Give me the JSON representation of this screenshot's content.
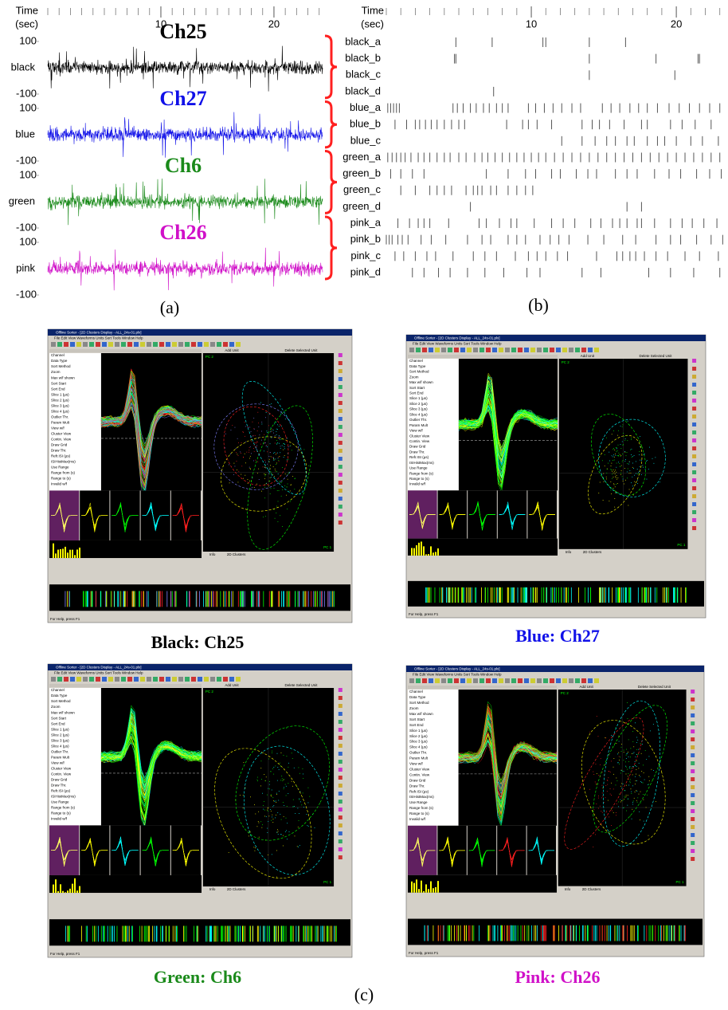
{
  "panel_a": {
    "label": "(a)",
    "time_label": [
      "Time",
      "(sec)"
    ],
    "xlim": [
      0,
      24.3
    ],
    "xticks": [
      10,
      20
    ],
    "minor_xticks": [
      0,
      1,
      2,
      3,
      4,
      5,
      6,
      7,
      8,
      9,
      11,
      12,
      13,
      14,
      15,
      16,
      17,
      18,
      19,
      21,
      22,
      23,
      24
    ],
    "ylim": [
      -100,
      100
    ],
    "yticks": [
      100,
      -100
    ],
    "channels": [
      {
        "title": "Ch25",
        "name": "black",
        "color": "#000000"
      },
      {
        "title": "Ch27",
        "name": "blue",
        "color": "#1010e8"
      },
      {
        "title": "Ch6",
        "name": "green",
        "color": "#1a8a1a"
      },
      {
        "title": "Ch26",
        "name": "pink",
        "color": "#d010c8"
      }
    ]
  },
  "panel_b": {
    "label": "(b)",
    "time_label": [
      "Time",
      "(sec)"
    ],
    "xlim": [
      0,
      23.4
    ],
    "xticks": [
      10,
      20
    ],
    "minor_xticks": [
      0,
      1,
      2,
      3,
      4,
      5,
      6,
      7,
      8,
      9,
      11,
      12,
      13,
      14,
      15,
      16,
      17,
      18,
      19,
      21,
      22,
      23
    ],
    "brace_color": "#ff2020",
    "groups": [
      {
        "units": [
          {
            "name": "black_a",
            "spikes": [
              4.8,
              7.3,
              10.8,
              11.0,
              14.0,
              16.5
            ]
          },
          {
            "name": "black_b",
            "spikes": [
              4.7,
              4.8,
              14.0,
              18.6,
              21.5,
              21.6
            ]
          },
          {
            "name": "black_c",
            "spikes": [
              14.0,
              19.9
            ]
          },
          {
            "name": "black_d",
            "spikes": [
              7.4
            ]
          }
        ]
      },
      {
        "units": [
          {
            "name": "blue_a",
            "spikes": [
              0.1,
              0.3,
              0.5,
              0.7,
              0.9,
              4.6,
              4.9,
              5.3,
              5.8,
              6.2,
              6.7,
              7.1,
              7.6,
              8.0,
              8.4,
              9.8,
              10.3,
              10.9,
              11.5,
              12.1,
              12.8,
              13.4,
              14.9,
              15.5,
              16.1,
              16.8,
              17.4,
              18.0,
              18.7,
              19.5,
              20.2,
              20.9,
              21.6,
              22.3,
              23.0
            ]
          },
          {
            "name": "blue_b",
            "spikes": [
              0.6,
              1.4,
              2.0,
              2.3,
              2.7,
              3.1,
              3.5,
              4.0,
              4.5,
              5.0,
              5.4,
              8.3,
              9.4,
              9.8,
              10.4,
              11.4,
              13.5,
              14.2,
              14.7,
              15.4,
              16.4,
              17.6,
              18.0,
              19.6,
              20.4,
              21.3,
              22.4
            ]
          },
          {
            "name": "blue_c",
            "spikes": [
              12.1,
              13.5,
              14.4,
              15.2,
              15.8,
              16.6,
              17.1,
              18.0,
              18.7,
              19.2,
              20.0,
              21.0,
              21.8,
              22.9
            ]
          }
        ]
      },
      {
        "units": [
          {
            "name": "green_a",
            "spikes": [
              0.1,
              0.4,
              0.7,
              1.0,
              1.3,
              1.7,
              2.2,
              2.6,
              3.0,
              3.5,
              4.0,
              4.4,
              5.0,
              5.5,
              6.1,
              6.6,
              7.0,
              7.5,
              8.0,
              8.5,
              9.0,
              9.5,
              10.0,
              10.5,
              11.0,
              11.6,
              12.2,
              12.8,
              13.4,
              14.0,
              14.6,
              15.2,
              15.8,
              16.4,
              17.0,
              17.6,
              18.2,
              18.8,
              19.4,
              20.0,
              20.6,
              21.2,
              21.8,
              22.4,
              23.0
            ]
          },
          {
            "name": "green_b",
            "spikes": [
              0.3,
              1.0,
              1.8,
              2.6,
              6.9,
              8.4,
              9.6,
              10.3,
              11.4,
              12.0,
              13.1,
              13.9,
              14.5,
              15.8,
              16.6,
              17.3,
              18.5,
              19.5,
              20.3,
              21.4,
              22.3,
              23.1
            ]
          },
          {
            "name": "green_c",
            "spikes": [
              1.0,
              2.0,
              3.0,
              3.5,
              4.0,
              4.5,
              5.5,
              6.0,
              6.3,
              6.6,
              7.2,
              7.6,
              8.4,
              9.0,
              9.6,
              10.1
            ]
          },
          {
            "name": "green_d",
            "spikes": [
              5.8,
              16.6,
              17.6
            ]
          }
        ]
      },
      {
        "units": [
          {
            "name": "pink_a",
            "spikes": [
              0.8,
              1.6,
              2.2,
              2.6,
              3.0,
              4.3,
              6.4,
              6.9,
              7.8,
              8.6,
              9.0,
              10.2,
              11.4,
              12.2,
              13.0,
              14.1,
              14.8,
              15.6,
              16.1,
              16.6,
              17.3,
              17.6,
              18.5,
              19.6,
              20.4,
              21.1,
              21.9,
              22.8
            ]
          },
          {
            "name": "pink_b",
            "spikes": [
              0.0,
              0.2,
              0.4,
              0.8,
              1.1,
              1.5,
              2.4,
              3.1,
              4.1,
              5.6,
              6.6,
              7.2,
              8.4,
              9.0,
              9.6,
              10.6,
              11.3,
              11.9,
              12.6,
              13.9,
              15.0,
              16.3,
              17.2,
              18.6,
              19.6,
              20.3,
              21.4,
              22.4,
              23.2
            ]
          },
          {
            "name": "pink_c",
            "spikes": [
              0.6,
              1.2,
              2.0,
              2.8,
              3.4,
              4.6,
              6.0,
              6.8,
              7.6,
              8.9,
              9.8,
              10.4,
              11.0,
              11.8,
              12.5,
              14.5,
              15.9,
              16.3,
              16.8,
              17.2,
              17.8,
              18.6,
              19.4,
              20.6,
              21.6,
              22.9
            ]
          },
          {
            "name": "pink_d",
            "spikes": [
              1.8,
              2.6,
              3.6,
              4.4,
              5.6,
              6.8,
              8.1,
              9.7,
              10.6,
              13.5,
              14.8,
              18.1,
              19.6,
              21.2,
              23.0
            ]
          }
        ]
      }
    ]
  },
  "panel_c": {
    "label": "(c)",
    "window_title": "Offline Sorter - [2D Clusters Display - ALL_24s-01.plx]",
    "menu": "File  Edit  View  Waveforms  Units  Sort  Tools  Window  Help",
    "buttons": [
      "Add Unit",
      "Delete Selected Unit"
    ],
    "tabs": [
      "Info",
      "2D Clusters"
    ],
    "axes": [
      "PC 2",
      "PC 1"
    ],
    "status": "For Help, press F1",
    "params": [
      "Channel",
      "Data Type",
      "Sort Method",
      "Zoom",
      "Max w/f shown",
      "Sort Start",
      "Sort End",
      "Slice 1 (µs)",
      "Slice 2 (µs)",
      "Slice 3 (µs)",
      "Slice 4 (µs)",
      "Outlier Thr.",
      "Param Mult",
      "View w/f",
      "Cluster View",
      "Contin. View",
      "Draw Grid",
      "Draw Thr.",
      "Refr.ISI (µs)",
      "ISIHistMax(ms)",
      "Use Range",
      "Range from (s)",
      "Range to (s)",
      "Invalid w/f"
    ],
    "screenshots": [
      {
        "caption": "Black: Ch25",
        "caption_color": "#000000",
        "unit_colors": [
          "#ffff00",
          "#00ff00",
          "#00ffff",
          "#ff2020",
          "#8080ff"
        ]
      },
      {
        "caption": "Blue: Ch27",
        "caption_color": "#1010e8",
        "unit_colors": [
          "#ffff00",
          "#00ff00",
          "#00ffff"
        ]
      },
      {
        "caption": "Green: Ch6",
        "caption_color": "#1a8a1a",
        "unit_colors": [
          "#ffff00",
          "#00ffff",
          "#00ff00"
        ]
      },
      {
        "caption": "Pink: Ch26",
        "caption_color": "#d010c8",
        "unit_colors": [
          "#ffff00",
          "#00ff00",
          "#ff2020",
          "#00ffff"
        ]
      }
    ]
  }
}
